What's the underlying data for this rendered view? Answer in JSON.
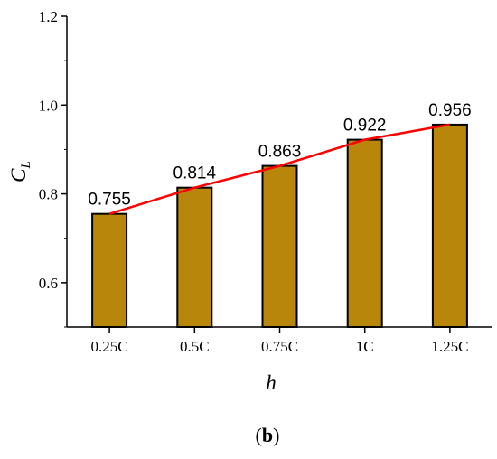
{
  "chart_data": {
    "type": "bar",
    "categories": [
      "0.25C",
      "0.5C",
      "0.75C",
      "1C",
      "1.25C"
    ],
    "values": [
      0.755,
      0.814,
      0.863,
      0.922,
      0.956
    ],
    "data_labels": [
      "0.755",
      "0.814",
      "0.863",
      "0.922",
      "0.956"
    ],
    "ylim": [
      0.5,
      1.2
    ],
    "y_ticks": [
      "0.6",
      "0.8",
      "1.0",
      "1.2"
    ],
    "ylabel_main": "C",
    "ylabel_sub": "L",
    "xlabel": "h",
    "caption_open": "(",
    "caption_letter": "b",
    "caption_close": ")",
    "bar_color": "#b8860b",
    "line_color": "#ff0000",
    "grid": false,
    "overlay": "line connecting bar tops"
  }
}
